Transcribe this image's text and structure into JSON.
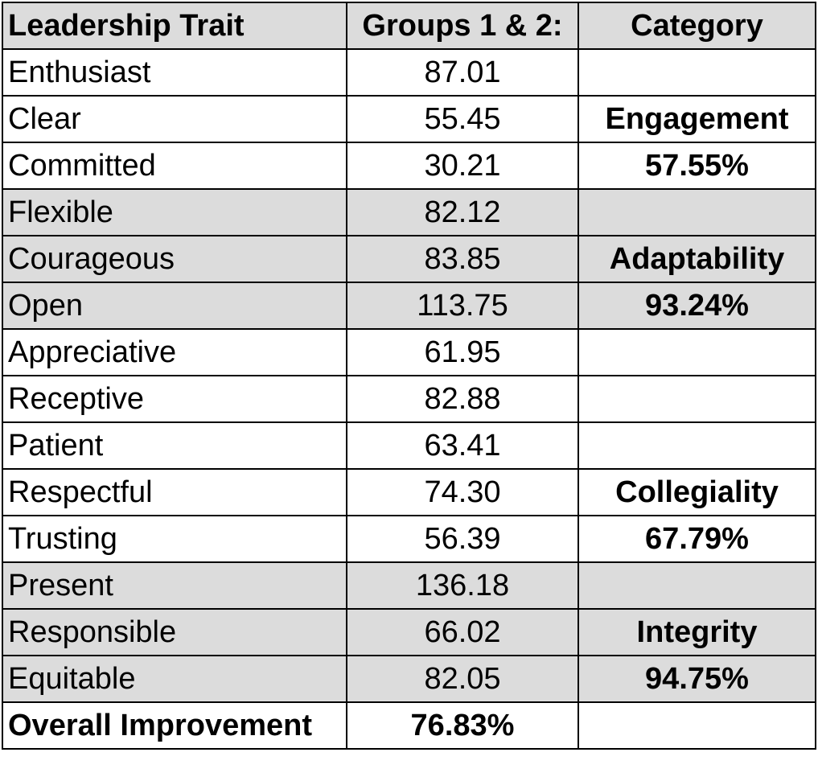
{
  "headers": [
    "Leadership Trait",
    "Groups 1 & 2:",
    "Category"
  ],
  "rows": [
    {
      "trait": "Enthusiast",
      "value": "87.01",
      "category": ""
    },
    {
      "trait": "Clear",
      "value": "55.45",
      "category": "Engagement"
    },
    {
      "trait": "Committed",
      "value": "30.21",
      "category": "57.55%"
    },
    {
      "trait": "Flexible",
      "value": "82.12",
      "category": ""
    },
    {
      "trait": "Courageous",
      "value": "83.85",
      "category": "Adaptability"
    },
    {
      "trait": "Open",
      "value": "113.75",
      "category": "93.24%"
    },
    {
      "trait": "Appreciative",
      "value": "61.95",
      "category": ""
    },
    {
      "trait": "Receptive",
      "value": "82.88",
      "category": ""
    },
    {
      "trait": "Patient",
      "value": "63.41",
      "category": ""
    },
    {
      "trait": "Respectful",
      "value": "74.30",
      "category": "Collegiality"
    },
    {
      "trait": "Trusting",
      "value": "56.39",
      "category": "67.79%"
    },
    {
      "trait": "Present",
      "value": "136.18",
      "category": ""
    },
    {
      "trait": "Responsible",
      "value": "66.02",
      "category": "Integrity"
    },
    {
      "trait": "Equitable",
      "value": "82.05",
      "category": "94.75%"
    }
  ],
  "footer": {
    "label": "Overall Improvement",
    "value": "76.83%",
    "category": ""
  },
  "colors": {
    "shaded_row": "#dcdcdc",
    "border": "#000000",
    "background": "#ffffff"
  }
}
